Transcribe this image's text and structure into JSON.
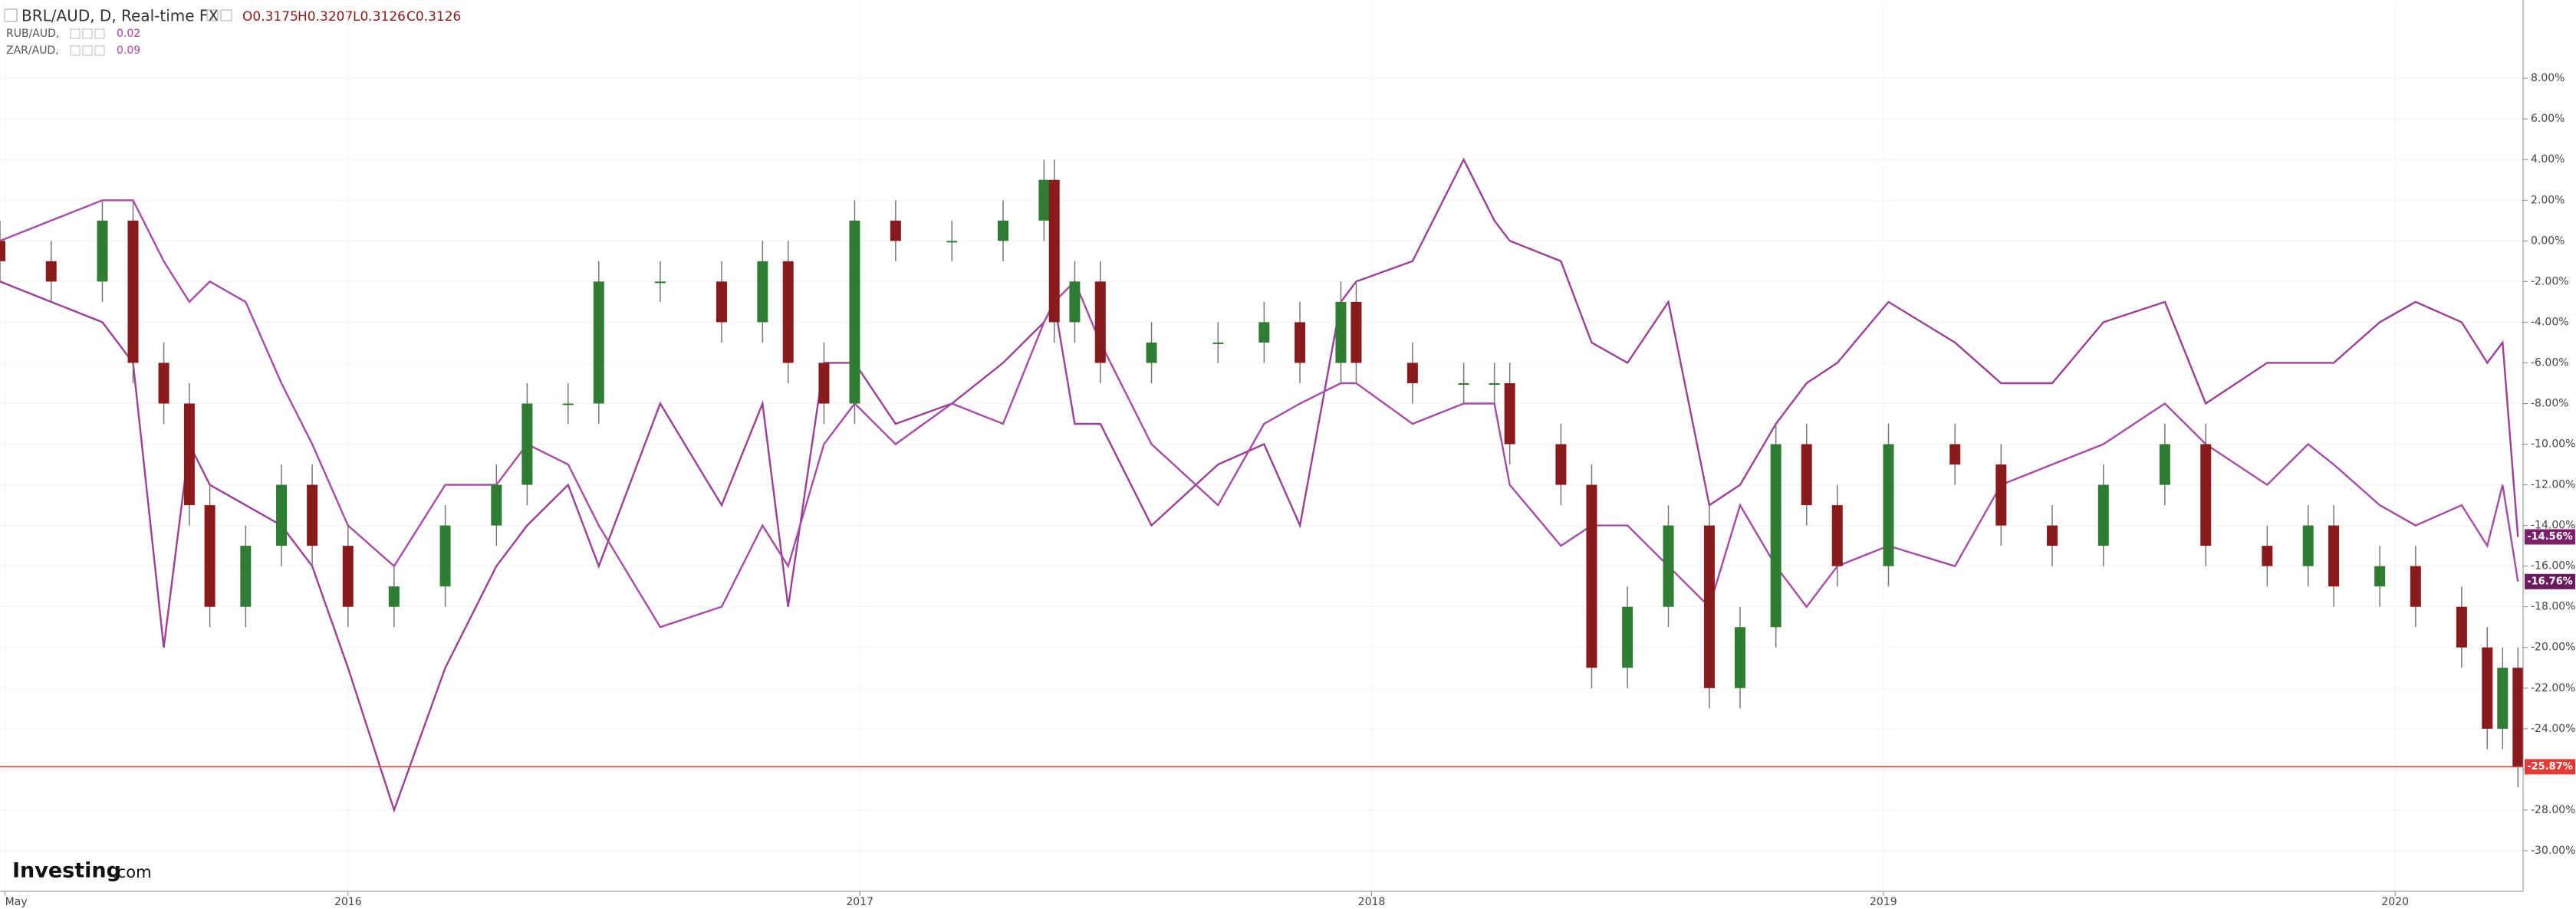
{
  "chart_data": {
    "type": "candlestick",
    "title": "BRL/AUD, D, Real-time FX",
    "quote": [
      "O0.3175",
      "H0.3207",
      "L0.3126",
      "C0.3126"
    ],
    "logo": [
      "Investing",
      ".com"
    ],
    "x": [
      2015.32,
      2015.42,
      2015.52,
      2015.58,
      2015.64,
      2015.69,
      2015.73,
      2015.8,
      2015.87,
      2015.93,
      2016.0,
      2016.09,
      2016.19,
      2016.29,
      2016.35,
      2016.43,
      2016.49,
      2016.61,
      2016.73,
      2016.81,
      2016.86,
      2016.93,
      2016.99,
      2017.07,
      2017.18,
      2017.28,
      2017.36,
      2017.38,
      2017.42,
      2017.47,
      2017.57,
      2017.7,
      2017.79,
      2017.86,
      2017.94,
      2017.97,
      2018.08,
      2018.18,
      2018.24,
      2018.27,
      2018.37,
      2018.43,
      2018.5,
      2018.58,
      2018.66,
      2018.72,
      2018.79,
      2018.85,
      2018.91,
      2019.01,
      2019.14,
      2019.23,
      2019.33,
      2019.43,
      2019.55,
      2019.63,
      2019.75,
      2019.83,
      2019.88,
      2019.97,
      2020.04,
      2020.13,
      2020.18,
      2020.21,
      2020.24
    ],
    "candles": {
      "name": "BRL/AUD",
      "up_color": "#2e7d32",
      "down_color": "#8b1a1a",
      "open": [
        0,
        -1,
        -2,
        1,
        -6,
        -8,
        -13,
        -18,
        -15,
        -12,
        -15,
        -18,
        -17,
        -14,
        -12,
        -8,
        -8,
        -2,
        -2,
        -4,
        -1,
        -6,
        -8,
        1,
        0,
        0,
        1,
        3,
        -4,
        -2,
        -6,
        -5,
        -5,
        -4,
        -6,
        -3,
        -6,
        -7,
        -7,
        -7,
        -10,
        -12,
        -21,
        -18,
        -14,
        -22,
        -19,
        -10,
        -13,
        -16,
        -10,
        -11,
        -14,
        -15,
        -12,
        -10,
        -15,
        -16,
        -14,
        -17,
        -16,
        -18,
        -20,
        -24,
        -21
      ],
      "high": [
        1,
        0,
        2,
        2,
        -5,
        -7,
        -12,
        -14,
        -11,
        -11,
        -14,
        -16,
        -13,
        -11,
        -7,
        -7,
        -1,
        -1,
        -1,
        0,
        0,
        -5,
        2,
        2,
        1,
        2,
        4,
        4,
        -1,
        -1,
        -4,
        -4,
        -3,
        -3,
        -2,
        -2,
        -5,
        -6,
        -6,
        -6,
        -9,
        -11,
        -17,
        -13,
        -13,
        -18,
        -9,
        -9,
        -12,
        -9,
        -9,
        -10,
        -13,
        -11,
        -9,
        -9,
        -14,
        -13,
        -13,
        -15,
        -15,
        -17,
        -19,
        -20,
        -20
      ],
      "low": [
        -2,
        -3,
        -3,
        -7,
        -9,
        -14,
        -19,
        -19,
        -16,
        -16,
        -19,
        -19,
        -18,
        -15,
        -13,
        -9,
        -9,
        -3,
        -5,
        -5,
        -7,
        -9,
        -9,
        -1,
        -1,
        -1,
        0,
        -5,
        -5,
        -7,
        -7,
        -6,
        -6,
        -7,
        -7,
        -7,
        -8,
        -8,
        -8,
        -11,
        -13,
        -22,
        -22,
        -19,
        -23,
        -23,
        -20,
        -14,
        -17,
        -17,
        -12,
        -15,
        -16,
        -16,
        -13,
        -16,
        -17,
        -17,
        -18,
        -18,
        -19,
        -21,
        -25,
        -25,
        -26.87
      ],
      "close": [
        -1,
        -2,
        1,
        -6,
        -8,
        -13,
        -18,
        -15,
        -12,
        -15,
        -18,
        -17,
        -14,
        -12,
        -8,
        -8,
        -2,
        -2,
        -4,
        -1,
        -6,
        -8,
        1,
        0,
        0,
        1,
        3,
        -4,
        -2,
        -6,
        -5,
        -5,
        -4,
        -6,
        -3,
        -6,
        -7,
        -7,
        -7,
        -10,
        -12,
        -21,
        -18,
        -14,
        -22,
        -19,
        -10,
        -13,
        -16,
        -10,
        -11,
        -14,
        -15,
        -12,
        -10,
        -15,
        -16,
        -14,
        -17,
        -16,
        -18,
        -20,
        -24,
        -21,
        -25.87
      ],
      "last_label": "-25.87%",
      "last_color": "#e53935"
    },
    "series": [
      {
        "name": "RUB/AUD, ",
        "legend_value": "0.02",
        "color": "#9c3f96",
        "last_label": "-14.56%",
        "last_color": "#7b1f6e",
        "values": [
          -2,
          -3,
          -4,
          -6,
          -20,
          -10,
          -12,
          -13,
          -14,
          -16,
          -21,
          -28,
          -21,
          -16,
          -14,
          -12,
          -16,
          -8,
          -13,
          -8,
          -18,
          -6,
          -6,
          -9,
          -8,
          -6,
          -4,
          -3,
          -9,
          -9,
          -14,
          -11,
          -10,
          -14,
          -3,
          -2,
          -1,
          4,
          1,
          0,
          -1,
          -5,
          -6,
          -3,
          -13,
          -12,
          -9,
          -7,
          -6,
          -3,
          -5,
          -7,
          -7,
          -4,
          -3,
          -8,
          -6,
          -6,
          -6,
          -4,
          -3,
          -4,
          -6,
          -5,
          -14.56
        ]
      },
      {
        "name": "ZAR/AUD, ",
        "legend_value": "0.09",
        "color": "#a64ca6",
        "last_label": "-16.76%",
        "last_color": "#6a1b5e",
        "values": [
          0,
          1,
          2,
          2,
          -1,
          -3,
          -2,
          -3,
          -7,
          -10,
          -14,
          -16,
          -12,
          -12,
          -10,
          -11,
          -14,
          -19,
          -18,
          -14,
          -16,
          -10,
          -8,
          -10,
          -8,
          -9,
          -4,
          -3,
          -2,
          -5,
          -10,
          -13,
          -9,
          -8,
          -7,
          -7,
          -9,
          -8,
          -8,
          -12,
          -15,
          -14,
          -14,
          -16,
          -18,
          -13,
          -16,
          -18,
          -16,
          -15,
          -16,
          -12,
          -11,
          -10,
          -8,
          -10,
          -12,
          -10,
          -11,
          -13,
          -14,
          -13,
          -15,
          -12,
          -16.76
        ]
      }
    ],
    "xlim": [
      2015.32,
      2020.25
    ],
    "xticks": [
      {
        "value": 2015.33,
        "label": "May"
      },
      2016,
      2017,
      2018,
      2019,
      2020
    ],
    "ylim": [
      -32,
      11.7
    ],
    "yticks": [
      {
        "value": 8,
        "label": "8.00%"
      },
      {
        "value": 6,
        "label": "6.00%"
      },
      {
        "value": 4,
        "label": "4.00%"
      },
      {
        "value": 2,
        "label": "2.00%"
      },
      {
        "value": 0,
        "label": "0.00%"
      },
      {
        "value": -2,
        "label": "-2.00%"
      },
      {
        "value": -4,
        "label": "-4.00%"
      },
      {
        "value": -6,
        "label": "-6.00%"
      },
      {
        "value": -8,
        "label": "-8.00%"
      },
      {
        "value": -10,
        "label": "-10.00%"
      },
      {
        "value": -12,
        "label": "-12.00%"
      },
      {
        "value": -14,
        "label": "-14.00%"
      },
      {
        "value": -16,
        "label": "-16.00%"
      },
      {
        "value": -18,
        "label": "-18.00%"
      },
      {
        "value": -20,
        "label": "-20.00%"
      },
      {
        "value": -22,
        "label": "-22.00%"
      },
      {
        "value": -24,
        "label": "-24.00%"
      },
      {
        "value": -26,
        "label": "-26.00%"
      },
      {
        "value": -28,
        "label": "-28.00%"
      },
      {
        "value": -30,
        "label": "-30.00%"
      }
    ],
    "grid": true
  }
}
